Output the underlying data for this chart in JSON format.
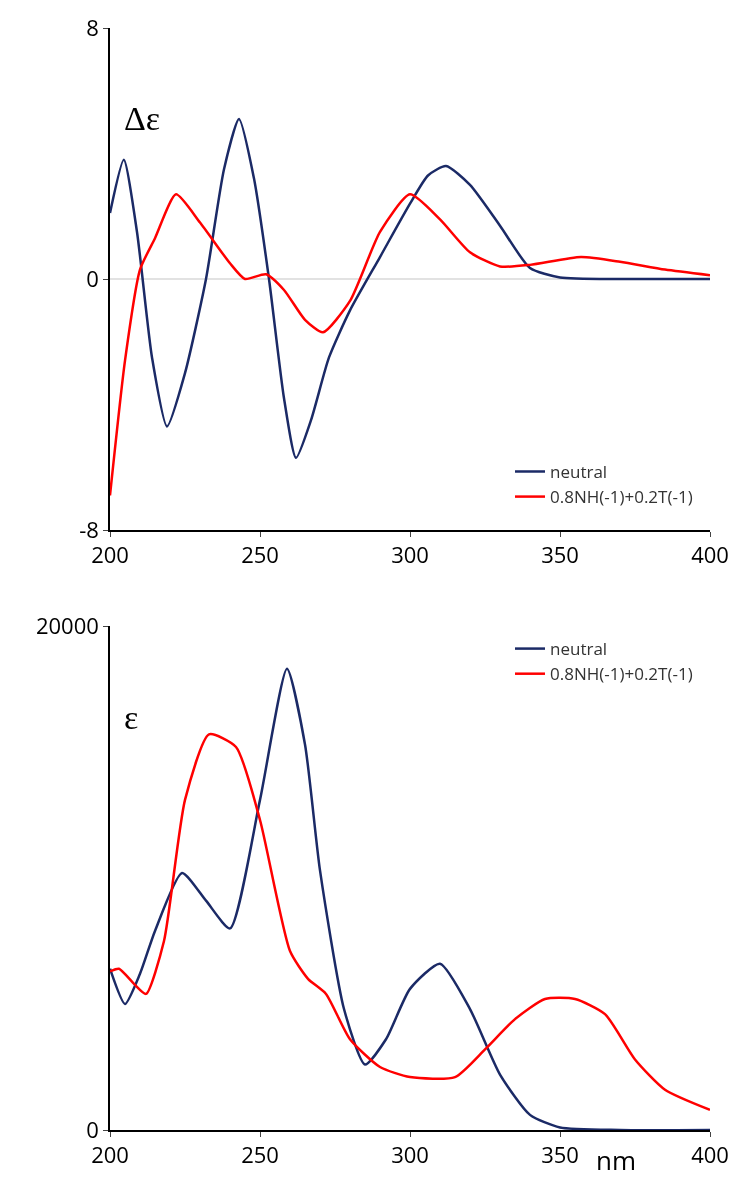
{
  "chart_data": [
    {
      "type": "line",
      "ylabel": "Δε",
      "xlim": [
        200,
        400
      ],
      "ylim": [
        -8,
        8
      ],
      "xticks": [
        200,
        250,
        300,
        350,
        400
      ],
      "yticks": [
        -8,
        0,
        8
      ],
      "grid": false,
      "legend": "bottom right",
      "marker": "none",
      "line_style": "solid",
      "ref_lines": [
        {
          "axis": "y",
          "value": 0,
          "color": "#d9d9d9"
        }
      ],
      "series": [
        {
          "name": "neutral",
          "color": "#1b2a66",
          "x": [
            200,
            204.6,
            209,
            214,
            219,
            225,
            232,
            238,
            243,
            248,
            253,
            258,
            262,
            267,
            273,
            280,
            290,
            300,
            306,
            312,
            320,
            330,
            340,
            350,
            370,
            400
          ],
          "values": [
            2.1,
            3.8,
            1.5,
            -2.5,
            -4.7,
            -3.0,
            0,
            3.5,
            5.1,
            3.2,
            0,
            -3.8,
            -5.7,
            -4.5,
            -2.5,
            -1.0,
            0.7,
            2.4,
            3.3,
            3.6,
            3.0,
            1.7,
            0.35,
            0.05,
            0,
            0
          ]
        },
        {
          "name": "0.8NH(-1)+0.2T(-1)",
          "color": "#ff0000",
          "x": [
            200,
            205,
            210,
            215,
            222,
            230,
            240,
            245,
            252,
            258,
            265,
            271,
            280,
            290,
            300,
            310,
            320,
            330,
            340,
            357,
            370,
            385,
            400
          ],
          "values": [
            -6.9,
            -2.6,
            0.3,
            1.3,
            2.7,
            1.8,
            0.5,
            0,
            0.15,
            -0.35,
            -1.3,
            -1.7,
            -0.7,
            1.5,
            2.7,
            1.9,
            0.85,
            0.4,
            0.45,
            0.7,
            0.55,
            0.3,
            0.12
          ]
        }
      ]
    },
    {
      "type": "line",
      "ylabel": "ε",
      "xlabel": "nm",
      "xlim": [
        200,
        400
      ],
      "ylim": [
        0,
        20000
      ],
      "xticks": [
        200,
        250,
        300,
        350,
        400
      ],
      "yticks": [
        0,
        20000
      ],
      "grid": false,
      "legend": "top right",
      "marker": "none",
      "line_style": "solid",
      "series": [
        {
          "name": "neutral",
          "color": "#1b2a66",
          "x": [
            200,
            205,
            210,
            215,
            224,
            232,
            240,
            250,
            259,
            265,
            270,
            278,
            285,
            292,
            300,
            310,
            320,
            330,
            340,
            350,
            370,
            400
          ],
          "values": [
            6400,
            5000,
            6200,
            7900,
            10200,
            9100,
            8000,
            13100,
            18300,
            15300,
            10300,
            4800,
            2600,
            3600,
            5600,
            6600,
            4800,
            2200,
            600,
            100,
            0,
            0
          ]
        },
        {
          "name": "0.8NH(-1)+0.2T(-1)",
          "color": "#ff0000",
          "x": [
            200,
            203,
            208,
            212,
            218,
            225,
            233,
            242,
            250,
            260,
            266,
            272,
            280,
            290,
            300,
            315,
            325,
            335,
            345,
            355,
            365,
            375,
            385,
            400
          ],
          "values": [
            6300,
            6400,
            5800,
            5400,
            7500,
            13100,
            15700,
            15200,
            12300,
            7100,
            6000,
            5400,
            3600,
            2500,
            2100,
            2100,
            3200,
            4400,
            5200,
            5200,
            4600,
            2800,
            1600,
            800
          ]
        }
      ]
    }
  ]
}
